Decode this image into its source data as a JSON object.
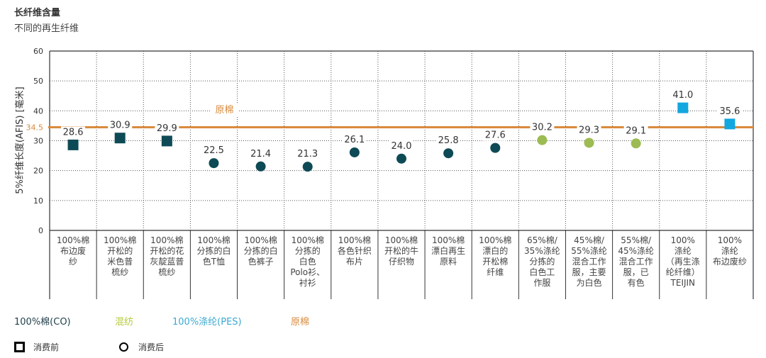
{
  "header": {
    "title": "长纤维含量",
    "subtitle": "不同的再生纤维"
  },
  "colors": {
    "cotton": "#0e4a55",
    "blend": "#9cbb52",
    "polyester": "#12a7df",
    "raw_cotton": "#d98a3c"
  },
  "legend": {
    "cotton": "100%棉(CO)",
    "blend": "混纺",
    "polyester": "100%涤纶(PES)",
    "raw_cotton": "原棉",
    "pre_consumer": "消费前",
    "post_consumer": "消费后"
  },
  "chart_data": {
    "type": "scatter",
    "title": "长纤维含量",
    "subtitle": "不同的再生纤维",
    "ylabel": "5%纤维长度(AFIS) [毫米]",
    "ylim": [
      0,
      60
    ],
    "yticks": [
      "0",
      "10",
      "20",
      "30",
      "40",
      "50",
      "60"
    ],
    "grid": true,
    "reference_line": {
      "label": "原棉",
      "value": 34.5,
      "value_label": "34.5"
    },
    "categories": [
      {
        "lines": [
          "100%棉",
          "布边废",
          "纱"
        ],
        "value": 28.6,
        "label": "28.6",
        "group": "cotton",
        "shape": "square"
      },
      {
        "lines": [
          "100%棉",
          "开松的",
          "米色普",
          "梳纱"
        ],
        "value": 30.9,
        "label": "30.9",
        "group": "cotton",
        "shape": "square"
      },
      {
        "lines": [
          "100%棉",
          "开松的花",
          "灰靛蓝普",
          "梳纱"
        ],
        "value": 29.9,
        "label": "29.9",
        "group": "cotton",
        "shape": "square"
      },
      {
        "lines": [
          "100%棉",
          "分拣的白",
          "色T恤"
        ],
        "value": 22.5,
        "label": "22.5",
        "group": "cotton",
        "shape": "circle"
      },
      {
        "lines": [
          "100%棉",
          "分拣的白",
          "色裤子"
        ],
        "value": 21.4,
        "label": "21.4",
        "group": "cotton",
        "shape": "circle"
      },
      {
        "lines": [
          "100%棉",
          "分拣的",
          "白色",
          "Polo衫、",
          "衬衫"
        ],
        "value": 21.3,
        "label": "21.3",
        "group": "cotton",
        "shape": "circle"
      },
      {
        "lines": [
          "100%棉",
          "各色针织",
          "布片"
        ],
        "value": 26.1,
        "label": "26.1",
        "group": "cotton",
        "shape": "circle"
      },
      {
        "lines": [
          "100%棉",
          "开松的牛",
          "仔织物"
        ],
        "value": 24.0,
        "label": "24.0",
        "group": "cotton",
        "shape": "circle"
      },
      {
        "lines": [
          "100%棉",
          "漂白再生",
          "原料"
        ],
        "value": 25.8,
        "label": "25.8",
        "group": "cotton",
        "shape": "circle"
      },
      {
        "lines": [
          "100%棉",
          "漂白的",
          "开松棉",
          "纤维"
        ],
        "value": 27.6,
        "label": "27.6",
        "group": "cotton",
        "shape": "circle"
      },
      {
        "lines": [
          "65%棉/",
          "35%涤纶",
          "分拣的",
          "白色工",
          "作服"
        ],
        "value": 30.2,
        "label": "30.2",
        "group": "blend",
        "shape": "circle"
      },
      {
        "lines": [
          "45%棉/",
          "55%涤纶",
          "混合工作",
          "服，主要",
          "为白色"
        ],
        "value": 29.3,
        "label": "29.3",
        "group": "blend",
        "shape": "circle"
      },
      {
        "lines": [
          "55%棉/",
          "45%涤纶",
          "混合工作",
          "服，已",
          "有色"
        ],
        "value": 29.1,
        "label": "29.1",
        "group": "blend",
        "shape": "circle"
      },
      {
        "lines": [
          "100%",
          "涤纶",
          "（再生涤",
          "纶纤维）",
          "TEIJIN"
        ],
        "value": 41.0,
        "label": "41.0",
        "group": "polyester",
        "shape": "square"
      },
      {
        "lines": [
          "100%",
          "涤纶",
          "布边废纱"
        ],
        "value": 35.6,
        "label": "35.6",
        "group": "polyester",
        "shape": "square"
      }
    ]
  }
}
